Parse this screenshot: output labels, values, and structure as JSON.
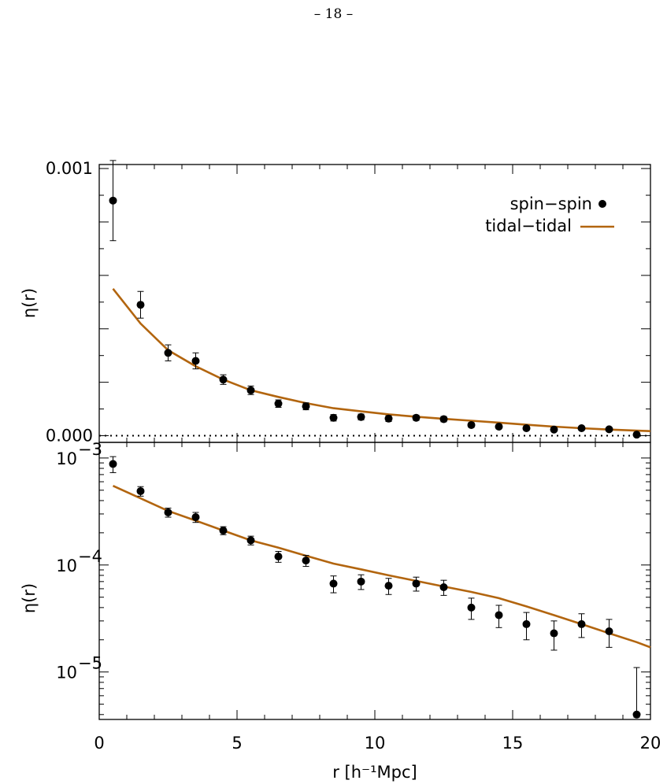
{
  "page_number": "– 18 –",
  "colors": {
    "model_line": "#b2650f",
    "points": "#000000",
    "background": "#ffffff"
  },
  "chart_data": [
    {
      "type": "scatter",
      "panel": "top",
      "scale": "linear",
      "ylabel": "η(r)",
      "xlabel": "",
      "xlim": [
        0,
        20
      ],
      "ylim": [
        -2.5e-05,
        0.001015
      ],
      "x_ticks": [
        0,
        5,
        10,
        15,
        20
      ],
      "y_tick_labels": [
        {
          "value": 0.0,
          "label": "0.000"
        },
        {
          "value": 0.001,
          "label": "0.001"
        }
      ],
      "zero_line": true,
      "legend": {
        "placement": "top-right",
        "entries": [
          "spin−spin",
          "tidal−tidal"
        ]
      },
      "series": [
        {
          "name": "spin−spin",
          "kind": "points",
          "x": [
            0.5,
            1.5,
            2.5,
            3.5,
            4.5,
            5.5,
            6.5,
            7.5,
            8.5,
            9.5,
            10.5,
            11.5,
            12.5,
            13.5,
            14.5,
            15.5,
            16.5,
            17.5,
            18.5,
            19.5
          ],
          "y": [
            0.00088,
            0.00049,
            0.00031,
            0.00028,
            0.00021,
            0.00017,
            0.00012,
            0.00011,
            6.7e-05,
            7e-05,
            6.4e-05,
            6.7e-05,
            6.2e-05,
            4e-05,
            3.4e-05,
            2.8e-05,
            2.3e-05,
            2.8e-05,
            2.4e-05,
            4e-06
          ],
          "err": [
            0.00015,
            5e-05,
            3e-05,
            3e-05,
            1.8e-05,
            1.6e-05,
            1.4e-05,
            1.3e-05,
            1.2e-05,
            1.1e-05,
            1.1e-05,
            1e-05,
            1e-05,
            9e-06,
            8e-06,
            8e-06,
            7e-06,
            7e-06,
            7e-06,
            7e-06
          ]
        },
        {
          "name": "tidal−tidal",
          "kind": "line",
          "x": [
            0.5,
            1.5,
            2.5,
            3.5,
            4.5,
            5.5,
            6.5,
            7.5,
            8.5,
            9.5,
            10.5,
            11.5,
            12.5,
            13.5,
            14.5,
            15.5,
            16.5,
            17.5,
            18.5,
            19.5,
            20.0
          ],
          "y": [
            0.00055,
            0.00042,
            0.00032,
            0.00026,
            0.00021,
            0.00017,
            0.000145,
            0.000122,
            0.000103,
            9.1e-05,
            8e-05,
            7.1e-05,
            6.3e-05,
            5.6e-05,
            4.9e-05,
            4.1e-05,
            3.4e-05,
            2.8e-05,
            2.3e-05,
            1.9e-05,
            1.7e-05
          ]
        }
      ]
    },
    {
      "type": "scatter",
      "panel": "bottom",
      "scale": "log",
      "ylabel": "η(r)",
      "xlabel": "r [h⁻¹Mpc]",
      "xlim": [
        0,
        20
      ],
      "ylim": [
        3.6e-06,
        0.0014
      ],
      "x_ticks": [
        0,
        5,
        10,
        15,
        20
      ],
      "y_tick_labels": [
        {
          "value": 0.001,
          "base": "10",
          "exp": "−3"
        },
        {
          "value": 0.0001,
          "base": "10",
          "exp": "−4"
        },
        {
          "value": 1e-05,
          "base": "10",
          "exp": "−5"
        }
      ],
      "series_ref": "same as top panel"
    }
  ]
}
